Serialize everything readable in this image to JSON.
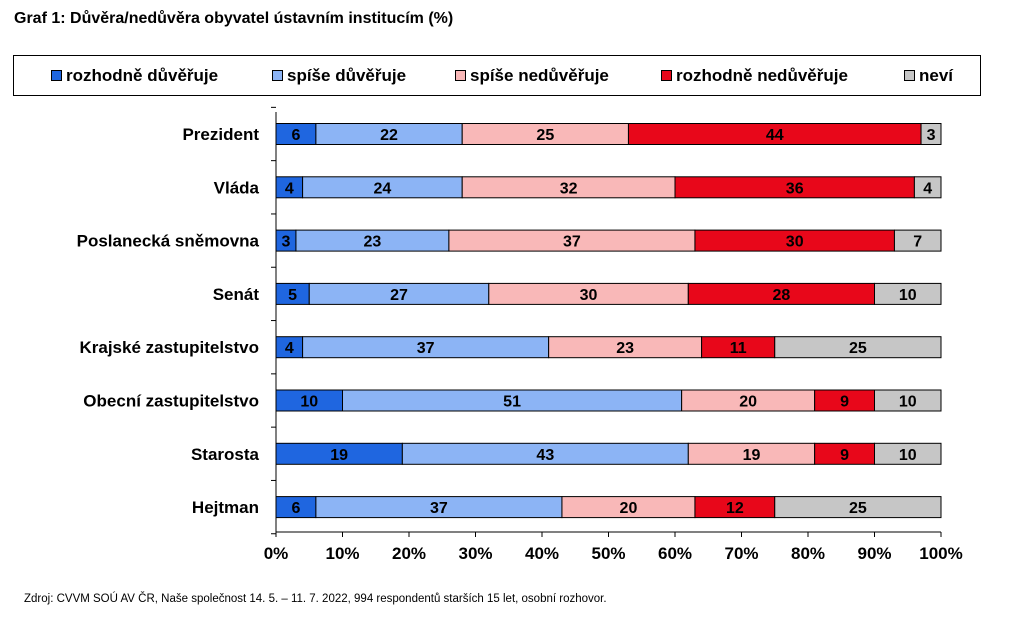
{
  "title": "Graf 1: Důvěra/nedůvěra obyvatel ústavním institucím (%)",
  "source": "Zdroj: CVVM SOÚ AV ČR, Naše společnost 14.  5. – 11. 7. 2022, 994 respondentů starších 15 let, osobní rozhovor.",
  "chart_data": {
    "type": "bar",
    "orientation": "horizontal",
    "stacked": "percent",
    "title": "Graf 1: Důvěra/nedůvěra obyvatel ústavním institucím (%)",
    "categories": [
      "Prezident",
      "Vláda",
      "Poslanecká sněmovna",
      "Senát",
      "Krajské zastupitelstvo",
      "Obecní zastupitelstvo",
      "Starosta",
      "Hejtman"
    ],
    "series": [
      {
        "name": "rozhodně důvěřuje",
        "color": "#1f66e0",
        "values": [
          6,
          4,
          3,
          5,
          4,
          10,
          19,
          6
        ]
      },
      {
        "name": "spíše důvěřuje",
        "color": "#8cb4f5",
        "values": [
          22,
          24,
          23,
          27,
          37,
          51,
          43,
          37
        ]
      },
      {
        "name": "spíše nedůvěřuje",
        "color": "#f9b8b8",
        "values": [
          25,
          32,
          37,
          30,
          23,
          20,
          19,
          20
        ]
      },
      {
        "name": "rozhodně nedůvěřuje",
        "color": "#e8071a",
        "values": [
          44,
          36,
          30,
          28,
          11,
          9,
          9,
          12
        ]
      },
      {
        "name": "neví",
        "color": "#c6c6c6",
        "values": [
          3,
          4,
          7,
          10,
          25,
          10,
          10,
          25
        ]
      }
    ],
    "xticks": [
      "0%",
      "10%",
      "20%",
      "30%",
      "40%",
      "50%",
      "60%",
      "70%",
      "80%",
      "90%",
      "100%"
    ],
    "xlim": [
      0,
      100
    ],
    "grid": false,
    "legend": "top"
  }
}
